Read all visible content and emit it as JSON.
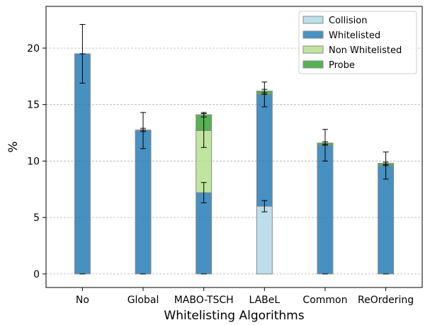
{
  "chart_data": {
    "type": "bar",
    "stacked": true,
    "title": "",
    "xlabel": "Whitelisting Algorithms",
    "ylabel": "%",
    "ylim": [
      -1.2,
      23.7
    ],
    "yticks": [
      0,
      5,
      10,
      15,
      20
    ],
    "grid": "horizontal dashed",
    "legend_position": "top-right",
    "categories": [
      "No",
      "Global",
      "MABO-TSCH",
      "LABeL",
      "Common",
      "ReOrdering"
    ],
    "series": [
      {
        "name": "Collision",
        "color": "#add8e6",
        "values": [
          0,
          0,
          0,
          6.0,
          0,
          0
        ],
        "err": [
          0,
          0,
          0,
          0.5,
          0,
          0
        ]
      },
      {
        "name": "Whitelisted",
        "color": "#1f77b4",
        "values": [
          19.5,
          12.7,
          7.2,
          9.9,
          11.4,
          9.6
        ],
        "err": [
          2.6,
          1.6,
          0.9,
          1.1,
          1.4,
          1.2
        ]
      },
      {
        "name": "Non Whitelisted",
        "color": "#b2df8a",
        "values": [
          0,
          0.05,
          5.5,
          0,
          0,
          0
        ],
        "err": [
          0,
          0.15,
          1.5,
          0,
          0,
          0
        ]
      },
      {
        "name": "Probe",
        "color": "#33a02c",
        "values": [
          0,
          0,
          1.4,
          0.3,
          0.2,
          0.2
        ],
        "err": [
          0,
          0,
          0.2,
          0.15,
          0.1,
          0.1
        ]
      }
    ]
  }
}
